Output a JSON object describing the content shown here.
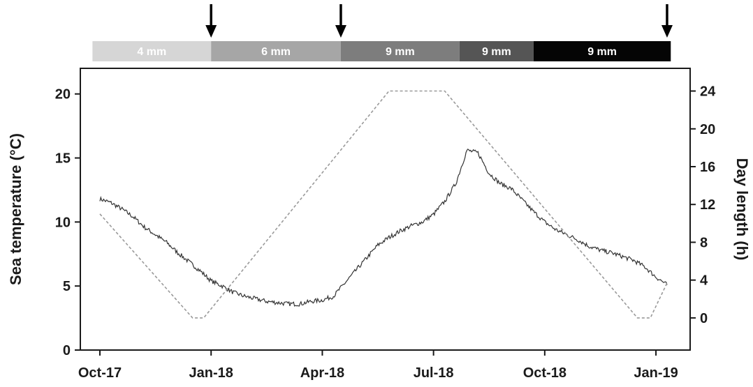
{
  "chart_data": {
    "type": "line",
    "title": "",
    "x_axis": {
      "tick_labels": [
        "Oct-17",
        "Jan-18",
        "Apr-18",
        "Jul-18",
        "Oct-18",
        "Jan-19"
      ],
      "tick_months": [
        0,
        3,
        6,
        9,
        12,
        15
      ]
    },
    "y_left": {
      "label": "Sea temperature (°C)",
      "ticks": [
        0,
        5,
        10,
        15,
        20
      ],
      "range": [
        0,
        22
      ]
    },
    "y_right": {
      "label": "Day length (h)",
      "ticks": [
        0,
        4,
        8,
        12,
        16,
        20,
        24
      ],
      "range": [
        -3.4,
        26.4
      ]
    },
    "series": [
      {
        "axis": "left",
        "style": "solid",
        "color": "#333333",
        "points": [
          [
            0.0,
            11.8
          ],
          [
            0.3,
            11.5
          ],
          [
            0.6,
            11.0
          ],
          [
            0.9,
            10.4
          ],
          [
            1.2,
            9.6
          ],
          [
            1.5,
            9.0
          ],
          [
            1.8,
            8.4
          ],
          [
            2.1,
            7.6
          ],
          [
            2.4,
            6.9
          ],
          [
            2.7,
            6.2
          ],
          [
            3.0,
            5.4
          ],
          [
            3.3,
            5.0
          ],
          [
            3.6,
            4.5
          ],
          [
            3.9,
            4.2
          ],
          [
            4.2,
            4.0
          ],
          [
            4.5,
            3.8
          ],
          [
            4.8,
            3.7
          ],
          [
            5.1,
            3.6
          ],
          [
            5.4,
            3.6
          ],
          [
            5.7,
            3.8
          ],
          [
            6.0,
            3.9
          ],
          [
            6.3,
            4.2
          ],
          [
            6.6,
            5.2
          ],
          [
            6.9,
            6.2
          ],
          [
            7.2,
            7.2
          ],
          [
            7.5,
            8.2
          ],
          [
            7.8,
            8.8
          ],
          [
            8.1,
            9.3
          ],
          [
            8.4,
            9.7
          ],
          [
            8.7,
            10.0
          ],
          [
            9.0,
            10.6
          ],
          [
            9.3,
            11.6
          ],
          [
            9.6,
            13.0
          ],
          [
            9.9,
            15.6
          ],
          [
            10.2,
            15.4
          ],
          [
            10.5,
            13.8
          ],
          [
            10.8,
            13.0
          ],
          [
            11.1,
            12.6
          ],
          [
            11.4,
            11.7
          ],
          [
            11.7,
            10.8
          ],
          [
            12.0,
            10.0
          ],
          [
            12.3,
            9.4
          ],
          [
            12.6,
            9.0
          ],
          [
            12.9,
            8.6
          ],
          [
            13.2,
            8.1
          ],
          [
            13.5,
            7.8
          ],
          [
            13.8,
            7.6
          ],
          [
            14.1,
            7.3
          ],
          [
            14.4,
            7.0
          ],
          [
            14.7,
            6.5
          ],
          [
            15.0,
            5.7
          ],
          [
            15.3,
            5.1
          ]
        ],
        "noise": 0.35
      },
      {
        "axis": "right",
        "style": "dashed",
        "color": "#999999",
        "points": [
          [
            0.0,
            11.0
          ],
          [
            2.5,
            0.0
          ],
          [
            2.8,
            0.0
          ],
          [
            7.8,
            24.0
          ],
          [
            9.3,
            24.0
          ],
          [
            14.5,
            0.0
          ],
          [
            14.85,
            0.0
          ],
          [
            15.3,
            3.7
          ]
        ]
      }
    ],
    "bands": [
      {
        "label": "4 mm",
        "start": -0.2,
        "end": 3.0,
        "color": "#d6d6d6"
      },
      {
        "label": "6 mm",
        "start": 3.0,
        "end": 6.5,
        "color": "#a6a6a6"
      },
      {
        "label": "9 mm",
        "start": 6.5,
        "end": 9.7,
        "color": "#7d7d7d"
      },
      {
        "label": "9 mm",
        "start": 9.7,
        "end": 11.7,
        "color": "#555555"
      },
      {
        "label": "9 mm",
        "start": 11.7,
        "end": 15.4,
        "color": "#050505"
      }
    ],
    "arrows": [
      3.0,
      6.5,
      15.3
    ],
    "grid": false,
    "legend": "none"
  }
}
